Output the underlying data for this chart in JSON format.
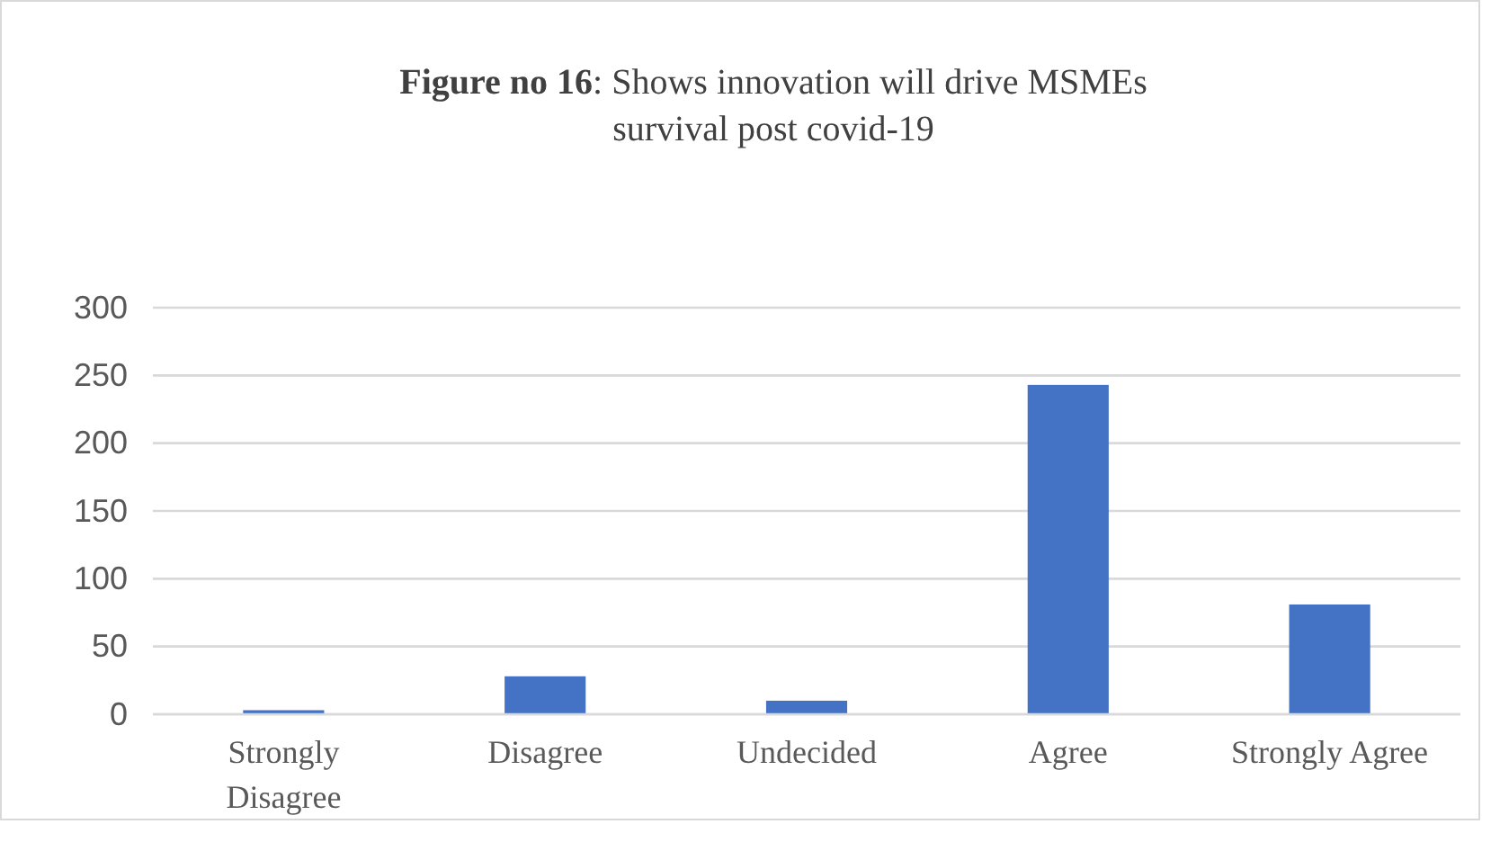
{
  "chart_data": {
    "type": "bar",
    "title": "Figure no 16: Shows innovation will drive MSMEs survival post covid-19",
    "categories": [
      "Strongly Disagree",
      "Disagree",
      "Undecided",
      "Agree",
      "Strongly Agree"
    ],
    "values": [
      3,
      28,
      10,
      243,
      81
    ],
    "color": "#4472c4",
    "ylim": [
      0,
      300
    ],
    "yticks": [
      0,
      50,
      100,
      150,
      200,
      250,
      300
    ],
    "grid": "y"
  }
}
